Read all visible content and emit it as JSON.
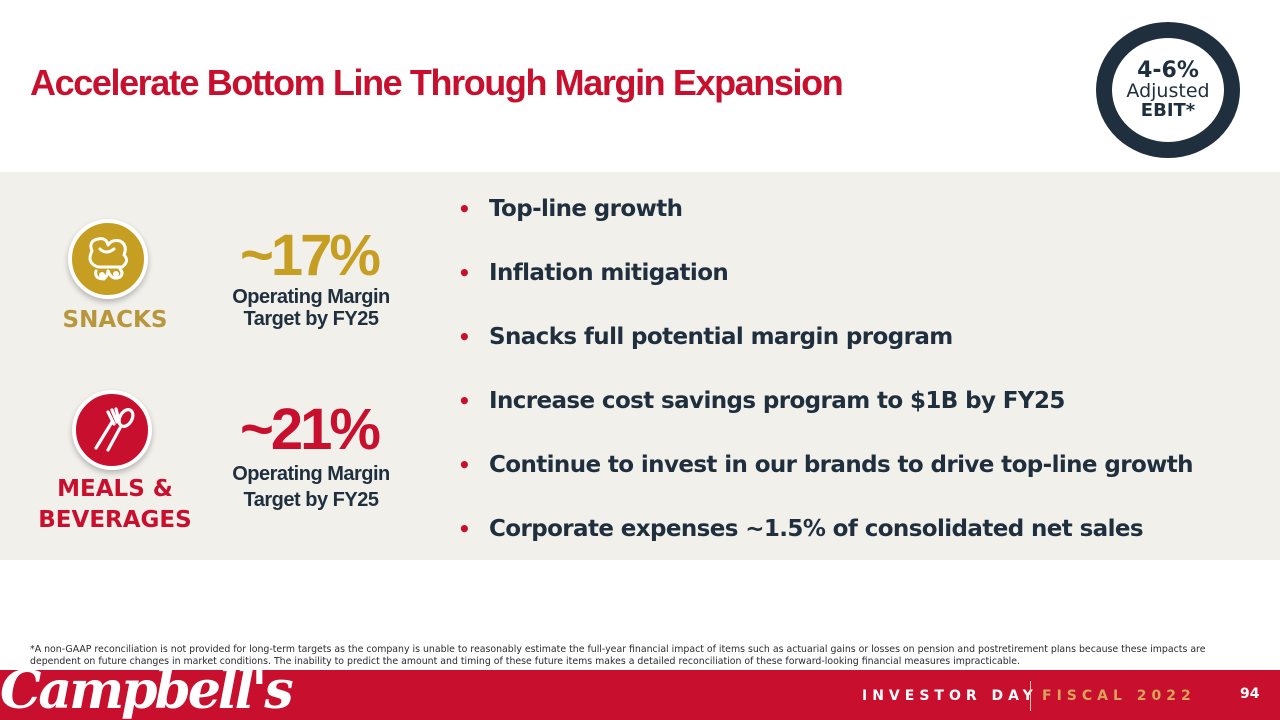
{
  "title": "Accelerate Bottom Line Through Margin Expansion",
  "badge": {
    "line1": "4-6%",
    "line2": "Adjusted",
    "line3": "EBIT*"
  },
  "segments": {
    "snacks": {
      "label": "SNACKS",
      "pct": "~17%",
      "target_l1": "Operating Margin",
      "target_l2": "Target by FY25",
      "icon": "snack-food-icon"
    },
    "meals": {
      "label_l1": "MEALS &",
      "label_l2": "BEVERAGES",
      "pct": "~21%",
      "target_l1": "Operating Margin",
      "target_l2": "Target by FY25",
      "icon": "fork-spoon-icon"
    }
  },
  "bullets": [
    "Top-line growth",
    "Inflation mitigation",
    "Snacks full potential margin program",
    "Increase cost savings program to $1B by FY25",
    "Continue to invest in our brands to drive top-line growth",
    "Corporate expenses ~1.5% of consolidated net sales"
  ],
  "bullet_char": "•",
  "footnote": "*A non-GAAP reconciliation is not provided for long-term targets as the company is unable to reasonably estimate the full-year financial impact of items such as actuarial gains or losses on pension and postretirement plans because these impacts are dependent on future changes in market conditions. The inability to predict the amount and timing of these future items makes a detailed reconciliation of these forward-looking financial measures impracticable.",
  "footer": {
    "logo": "Campbell's",
    "event": "INVESTOR DAY",
    "fiscal": "FISCAL 2022",
    "page": "94"
  },
  "colors": {
    "brand_red": "#c8102e",
    "gold": "#c69e22",
    "navy": "#1f2f3d",
    "panel": "#f2f0eb"
  }
}
